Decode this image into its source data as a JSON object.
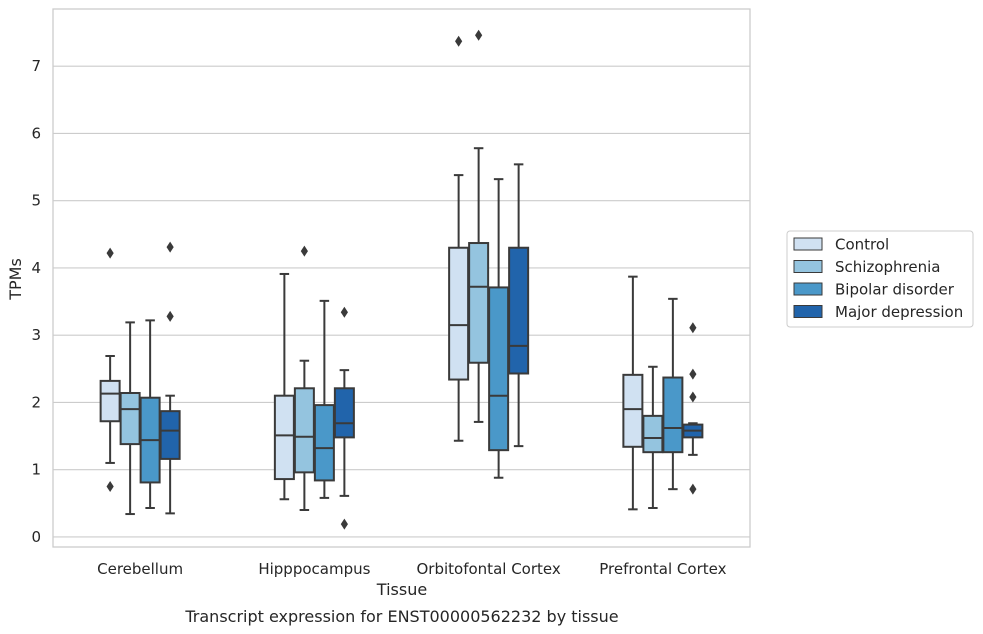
{
  "chart_data": {
    "type": "box",
    "title": "",
    "caption": "Transcript expression for ENST00000562232 by tissue",
    "xlabel": "Tissue",
    "ylabel": "TPMs",
    "ylim": [
      -0.15,
      7.85
    ],
    "yticks": [
      0,
      1,
      2,
      3,
      4,
      5,
      6,
      7
    ],
    "grid": "horizontal",
    "legend_position": "right",
    "categories": [
      "Cerebellum",
      "Hipppocampus",
      "Orbitofontal Cortex",
      "Prefrontal Cortex"
    ],
    "series": [
      {
        "name": "Control",
        "color": "#d0e1f2",
        "boxes": [
          {
            "whisker_low": 1.1,
            "q1": 1.72,
            "median": 2.13,
            "q3": 2.32,
            "whisker_high": 2.69,
            "outliers": [
              4.22,
              0.75
            ]
          },
          {
            "whisker_low": 0.56,
            "q1": 0.86,
            "median": 1.51,
            "q3": 2.1,
            "whisker_high": 3.91,
            "outliers": []
          },
          {
            "whisker_low": 1.43,
            "q1": 2.34,
            "median": 3.15,
            "q3": 4.3,
            "whisker_high": 5.38,
            "outliers": [
              7.37
            ]
          },
          {
            "whisker_low": 0.41,
            "q1": 1.34,
            "median": 1.9,
            "q3": 2.41,
            "whisker_high": 3.87,
            "outliers": []
          }
        ]
      },
      {
        "name": "Schizophrenia",
        "color": "#94c4df",
        "boxes": [
          {
            "whisker_low": 0.34,
            "q1": 1.38,
            "median": 1.9,
            "q3": 2.14,
            "whisker_high": 3.19,
            "outliers": []
          },
          {
            "whisker_low": 0.4,
            "q1": 0.96,
            "median": 1.49,
            "q3": 2.21,
            "whisker_high": 2.62,
            "outliers": [
              4.25
            ]
          },
          {
            "whisker_low": 1.71,
            "q1": 2.59,
            "median": 3.72,
            "q3": 4.37,
            "whisker_high": 5.78,
            "outliers": [
              7.46
            ]
          },
          {
            "whisker_low": 0.43,
            "q1": 1.26,
            "median": 1.47,
            "q3": 1.8,
            "whisker_high": 2.53,
            "outliers": []
          }
        ]
      },
      {
        "name": "Bipolar disorder",
        "color": "#4a98c9",
        "boxes": [
          {
            "whisker_low": 0.43,
            "q1": 0.81,
            "median": 1.44,
            "q3": 2.07,
            "whisker_high": 3.22,
            "outliers": []
          },
          {
            "whisker_low": 0.58,
            "q1": 0.84,
            "median": 1.32,
            "q3": 1.96,
            "whisker_high": 3.51,
            "outliers": []
          },
          {
            "whisker_low": 0.88,
            "q1": 1.29,
            "median": 2.1,
            "q3": 3.71,
            "whisker_high": 5.32,
            "outliers": []
          },
          {
            "whisker_low": 0.71,
            "q1": 1.26,
            "median": 1.62,
            "q3": 2.37,
            "whisker_high": 3.54,
            "outliers": []
          }
        ]
      },
      {
        "name": "Major depression",
        "color": "#2164ab",
        "boxes": [
          {
            "whisker_low": 0.35,
            "q1": 1.16,
            "median": 1.58,
            "q3": 1.87,
            "whisker_high": 2.1,
            "outliers": [
              4.31,
              3.28
            ]
          },
          {
            "whisker_low": 0.61,
            "q1": 1.48,
            "median": 1.69,
            "q3": 2.21,
            "whisker_high": 2.48,
            "outliers": [
              3.34,
              0.19
            ]
          },
          {
            "whisker_low": 1.35,
            "q1": 2.43,
            "median": 2.84,
            "q3": 4.3,
            "whisker_high": 5.54,
            "outliers": []
          },
          {
            "whisker_low": 1.22,
            "q1": 1.48,
            "median": 1.58,
            "q3": 1.67,
            "whisker_high": 1.69,
            "outliers": [
              3.11,
              2.42,
              2.08,
              0.71
            ]
          }
        ]
      }
    ]
  }
}
